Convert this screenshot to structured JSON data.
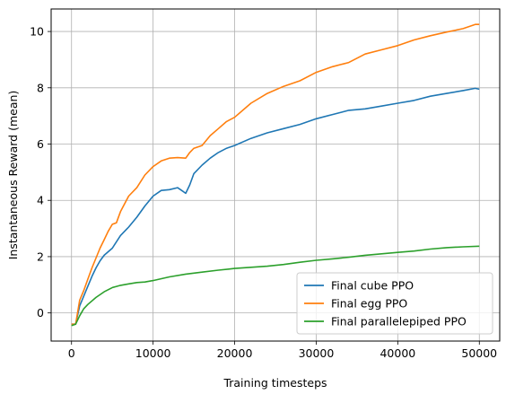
{
  "chart_data": {
    "type": "line",
    "title": "",
    "xlabel": "Training timesteps",
    "ylabel": "Instantaneous Reward (mean)",
    "xlim": [
      -2500,
      52500
    ],
    "ylim": [
      -1.0,
      10.8
    ],
    "xticks": [
      0,
      10000,
      20000,
      30000,
      40000,
      50000
    ],
    "xtick_labels": [
      "0",
      "10000",
      "20000",
      "30000",
      "40000",
      "50000"
    ],
    "yticks": [
      0,
      2,
      4,
      6,
      8,
      10
    ],
    "ytick_labels": [
      "0",
      "2",
      "4",
      "6",
      "8",
      "10"
    ],
    "grid": true,
    "legend_position": "lower-right",
    "series": [
      {
        "name": "Final cube PPO",
        "color": "#1f77b4",
        "x": [
          0,
          500,
          1000,
          1500,
          2000,
          2500,
          3000,
          3500,
          4000,
          5000,
          6000,
          7000,
          8000,
          9000,
          10000,
          11000,
          12000,
          13000,
          13500,
          14000,
          14500,
          15000,
          16000,
          17000,
          18000,
          19000,
          20000,
          22000,
          24000,
          26000,
          28000,
          30000,
          32000,
          34000,
          36000,
          38000,
          40000,
          42000,
          44000,
          46000,
          48000,
          49500,
          50000
        ],
        "y": [
          -0.4,
          -0.4,
          0.25,
          0.6,
          0.95,
          1.3,
          1.6,
          1.85,
          2.05,
          2.3,
          2.75,
          3.05,
          3.4,
          3.8,
          4.15,
          4.35,
          4.38,
          4.45,
          4.35,
          4.25,
          4.55,
          4.95,
          5.25,
          5.5,
          5.7,
          5.85,
          5.95,
          6.2,
          6.4,
          6.55,
          6.7,
          6.9,
          7.05,
          7.2,
          7.25,
          7.35,
          7.45,
          7.55,
          7.7,
          7.8,
          7.9,
          7.98,
          7.95
        ]
      },
      {
        "name": "Final egg PPO",
        "color": "#ff7f0e",
        "x": [
          0,
          500,
          1000,
          1500,
          2000,
          2500,
          3000,
          3500,
          4000,
          4500,
          5000,
          5500,
          6000,
          7000,
          8000,
          9000,
          10000,
          11000,
          12000,
          13000,
          14000,
          14500,
          15000,
          16000,
          17000,
          18000,
          19000,
          20000,
          22000,
          24000,
          26000,
          28000,
          30000,
          32000,
          34000,
          36000,
          38000,
          40000,
          42000,
          44000,
          46000,
          48000,
          49500,
          50000
        ],
        "y": [
          -0.4,
          -0.4,
          0.45,
          0.8,
          1.2,
          1.6,
          1.95,
          2.3,
          2.6,
          2.9,
          3.15,
          3.2,
          3.6,
          4.15,
          4.45,
          4.9,
          5.2,
          5.4,
          5.5,
          5.52,
          5.5,
          5.7,
          5.85,
          5.95,
          6.3,
          6.55,
          6.8,
          6.95,
          7.45,
          7.8,
          8.05,
          8.25,
          8.55,
          8.75,
          8.9,
          9.2,
          9.35,
          9.5,
          9.7,
          9.85,
          9.98,
          10.1,
          10.25,
          10.25
        ]
      },
      {
        "name": "Final parallelepiped PPO",
        "color": "#2ca02c",
        "x": [
          0,
          500,
          1000,
          1500,
          2000,
          3000,
          4000,
          5000,
          6000,
          7000,
          8000,
          9000,
          10000,
          12000,
          14000,
          16000,
          18000,
          20000,
          22000,
          24000,
          26000,
          28000,
          30000,
          32000,
          34000,
          36000,
          38000,
          40000,
          42000,
          44000,
          46000,
          48000,
          50000
        ],
        "y": [
          -0.45,
          -0.4,
          -0.1,
          0.15,
          0.3,
          0.55,
          0.75,
          0.9,
          0.98,
          1.03,
          1.08,
          1.1,
          1.15,
          1.28,
          1.38,
          1.45,
          1.52,
          1.58,
          1.62,
          1.66,
          1.72,
          1.8,
          1.87,
          1.92,
          1.98,
          2.05,
          2.1,
          2.15,
          2.2,
          2.27,
          2.32,
          2.35,
          2.37
        ]
      }
    ]
  }
}
